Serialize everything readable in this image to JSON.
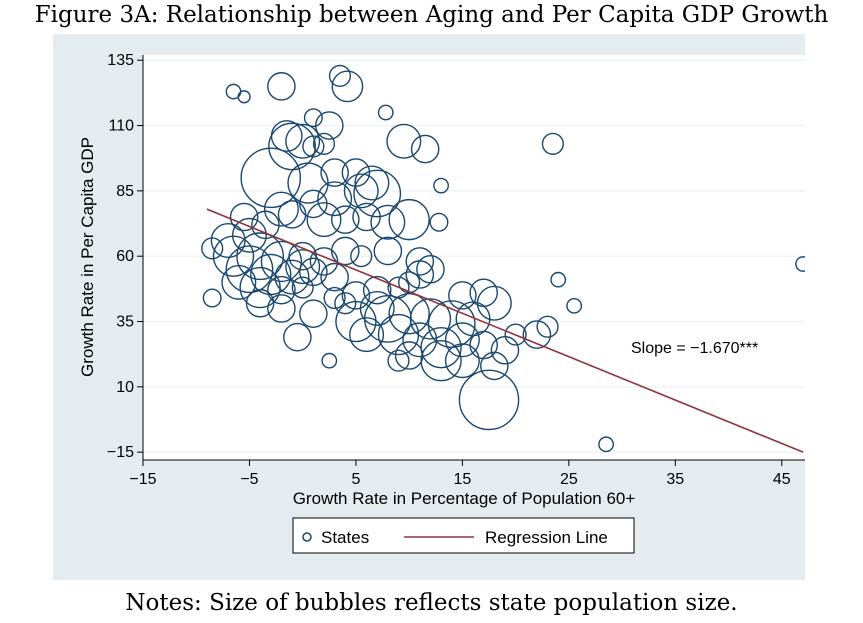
{
  "figure": {
    "title": "Figure 3A: Relationship between Aging and Per Capita GDP Growth",
    "notes": "Notes: Size of bubbles reflects state population size."
  },
  "chart_data": {
    "type": "scatter",
    "xlabel": "Growth Rate in Percentage of Population 60+",
    "ylabel": "Growth Rate in Per Capita GDP",
    "xlim": [
      -15,
      50
    ],
    "ylim": [
      -18,
      137
    ],
    "xticks": [
      -15,
      -5,
      5,
      15,
      25,
      35,
      45
    ],
    "yticks": [
      -15,
      10,
      35,
      60,
      85,
      110,
      135
    ],
    "xtick_labels": [
      "−15",
      "−5",
      "5",
      "15",
      "25",
      "35",
      "45"
    ],
    "ytick_labels": [
      "−15",
      "10",
      "35",
      "60",
      "85",
      "110",
      "135"
    ],
    "grid": true,
    "legend_position": "bottom",
    "legend": [
      {
        "name": "States",
        "marker": "circle"
      },
      {
        "name": "Regression Line",
        "marker": "line"
      }
    ],
    "annotation": "Slope = −1.670***",
    "colors": {
      "bubble": "#1a476f",
      "line": "#90353b",
      "plot_bg": "#ffffff",
      "outer_bg": "#e5ecef"
    },
    "regression_line": {
      "x": [
        -9,
        47
      ],
      "y": [
        78,
        -15
      ]
    },
    "series": [
      {
        "name": "States",
        "points": [
          [
            -6.5,
            123,
            1
          ],
          [
            -5.5,
            121,
            0.6
          ],
          [
            -2,
            125,
            3
          ],
          [
            3.5,
            129,
            2
          ],
          [
            4.2,
            125,
            3.5
          ],
          [
            7.8,
            115,
            1
          ],
          [
            1,
            113,
            1.5
          ],
          [
            2.5,
            110,
            3
          ],
          [
            -1.5,
            106,
            3.5
          ],
          [
            0,
            104,
            4
          ],
          [
            -1,
            102,
            6
          ],
          [
            1,
            102,
            2
          ],
          [
            2,
            103,
            2
          ],
          [
            9.5,
            104,
            4
          ],
          [
            11.5,
            101,
            3
          ],
          [
            -3,
            90,
            8
          ],
          [
            0.5,
            88,
            5
          ],
          [
            3,
            92,
            3
          ],
          [
            5,
            92,
            3
          ],
          [
            6.5,
            88,
            4
          ],
          [
            5.5,
            85,
            4
          ],
          [
            7,
            84,
            6
          ],
          [
            3,
            82,
            4
          ],
          [
            1,
            80,
            3
          ],
          [
            13,
            87,
            1
          ],
          [
            -2,
            78,
            4
          ],
          [
            -1,
            76,
            3
          ],
          [
            2,
            74,
            4
          ],
          [
            4,
            74,
            3
          ],
          [
            6,
            75,
            3
          ],
          [
            8,
            73,
            4
          ],
          [
            10,
            74,
            5
          ],
          [
            12.8,
            73,
            1.5
          ],
          [
            -3.5,
            72,
            3
          ],
          [
            -5,
            68,
            4
          ],
          [
            -7,
            66,
            4
          ],
          [
            -8.5,
            63,
            2
          ],
          [
            -6.5,
            60,
            5
          ],
          [
            -4,
            60,
            6
          ],
          [
            -2,
            58,
            5
          ],
          [
            0,
            56,
            4
          ],
          [
            2,
            58,
            3
          ],
          [
            4,
            62,
            3
          ],
          [
            5.5,
            60,
            2
          ],
          [
            -5,
            55,
            6
          ],
          [
            -3,
            53,
            5
          ],
          [
            -1,
            52,
            4
          ],
          [
            1,
            54,
            3
          ],
          [
            3,
            52,
            3
          ],
          [
            -6,
            50,
            4
          ],
          [
            -4,
            48,
            5
          ],
          [
            -2,
            47,
            3
          ],
          [
            0,
            48,
            2
          ],
          [
            -8.5,
            44,
            1.5
          ],
          [
            -4,
            42,
            3
          ],
          [
            -2,
            40,
            3
          ],
          [
            1,
            38,
            3
          ],
          [
            3,
            44,
            2
          ],
          [
            5,
            45,
            3
          ],
          [
            7,
            47,
            3
          ],
          [
            9,
            48,
            2
          ],
          [
            11,
            53,
            3
          ],
          [
            12,
            55,
            3
          ],
          [
            11,
            58,
            3
          ],
          [
            10,
            50,
            2
          ],
          [
            7,
            40,
            4
          ],
          [
            8,
            36,
            6
          ],
          [
            10,
            38,
            5
          ],
          [
            12,
            36,
            5
          ],
          [
            14,
            34,
            6
          ],
          [
            16,
            36,
            4
          ],
          [
            18,
            42,
            4
          ],
          [
            17,
            46,
            3
          ],
          [
            15,
            45,
            3
          ],
          [
            9,
            30,
            5
          ],
          [
            11,
            28,
            4
          ],
          [
            13,
            25,
            5
          ],
          [
            15,
            28,
            4
          ],
          [
            17,
            26,
            3
          ],
          [
            19,
            24,
            3
          ],
          [
            20,
            30,
            2
          ],
          [
            22,
            30,
            3
          ],
          [
            23,
            33,
            2
          ],
          [
            10,
            22,
            3
          ],
          [
            13,
            20,
            5
          ],
          [
            15,
            20,
            4
          ],
          [
            18,
            18,
            3
          ],
          [
            9,
            20,
            2
          ],
          [
            17.5,
            5,
            8
          ],
          [
            2.5,
            20,
            1
          ],
          [
            24,
            51,
            1
          ],
          [
            25.5,
            41,
            1
          ],
          [
            23.5,
            103,
            2
          ],
          [
            28.5,
            -12,
            1
          ],
          [
            47,
            57,
            1
          ],
          [
            -0.5,
            29,
            3
          ],
          [
            5,
            35,
            5
          ],
          [
            6,
            30,
            4
          ],
          [
            4,
            42,
            2
          ],
          [
            0,
            60,
            3
          ],
          [
            -5.5,
            75,
            3
          ],
          [
            8,
            62,
            3
          ]
        ]
      }
    ]
  }
}
